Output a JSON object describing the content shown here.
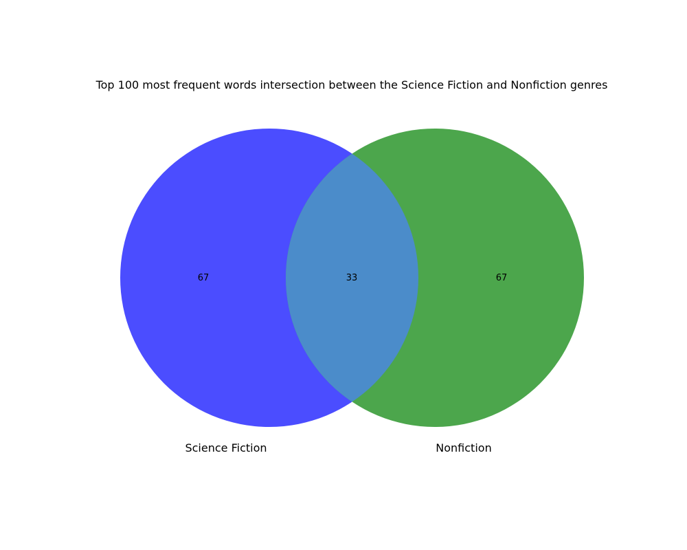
{
  "title": "Top 100 most frequent words intersection between the Science Fiction and Nonfiction genres",
  "sets": [
    {
      "label": "Science Fiction",
      "only_count": "67",
      "color": "#4b4dff"
    },
    {
      "label": "Nonfiction",
      "only_count": "67",
      "color": "#4ca64c"
    }
  ],
  "intersection": {
    "count": "33",
    "color": "#4b8cca"
  }
}
